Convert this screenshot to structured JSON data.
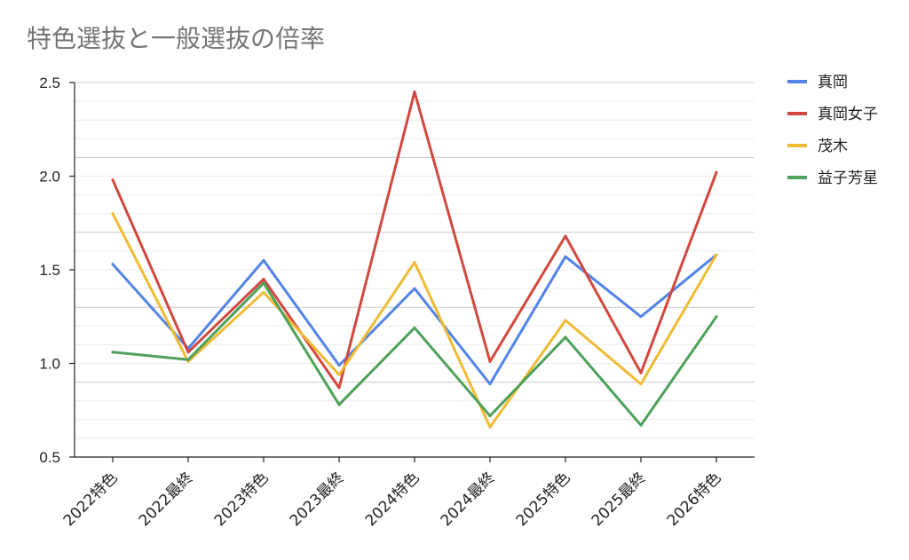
{
  "chart_data": {
    "type": "line",
    "title": "特色選抜と一般選抜の倍率",
    "categories": [
      "2022特色",
      "2022最終",
      "2023特色",
      "2023最終",
      "2024特色",
      "2024最終",
      "2025特色",
      "2025最終",
      "2026特色"
    ],
    "ylim": [
      0.5,
      2.5
    ],
    "yticks": [
      "0.5",
      "1.0",
      "1.5",
      "2.0",
      "2.5"
    ],
    "ytick_values": [
      0.5,
      1.0,
      1.5,
      2.0,
      2.5
    ],
    "minor_gridlines": true,
    "legend_position": "right",
    "series": [
      {
        "name": "真岡",
        "color": "#5384e6",
        "values": [
          1.53,
          1.08,
          1.55,
          0.99,
          1.4,
          0.89,
          1.57,
          1.25,
          1.58
        ]
      },
      {
        "name": "真岡女子",
        "color": "#d1493e",
        "values": [
          1.98,
          1.06,
          1.45,
          0.87,
          2.45,
          1.01,
          1.68,
          0.95,
          2.02
        ]
      },
      {
        "name": "茂木",
        "color": "#f0bb34",
        "values": [
          1.8,
          1.01,
          1.38,
          0.94,
          1.54,
          0.66,
          1.23,
          0.89,
          1.58
        ]
      },
      {
        "name": "益子芳星",
        "color": "#4ea15b",
        "values": [
          1.06,
          1.02,
          1.43,
          0.78,
          1.19,
          0.72,
          1.14,
          0.67,
          1.25
        ]
      }
    ]
  }
}
